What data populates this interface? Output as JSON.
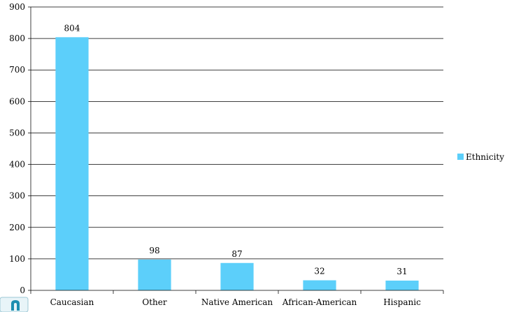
{
  "chart_data": {
    "type": "bar",
    "categories": [
      "Caucasian",
      "Other",
      "Native American",
      "African-American",
      "Hispanic"
    ],
    "series": [
      {
        "name": "Ethnicity",
        "values": [
          804,
          98,
          87,
          32,
          31
        ]
      }
    ],
    "ylim": [
      0,
      900
    ],
    "ytick_step": 100,
    "grid": true,
    "legend_position": "right",
    "colors": {
      "bar": "#5ccffa",
      "grid": "#000000",
      "axis": "#000000"
    }
  },
  "decorations": {
    "corner_logo_color": "#1d8fb0",
    "corner_logo_icon": "partial-logo-icon"
  }
}
